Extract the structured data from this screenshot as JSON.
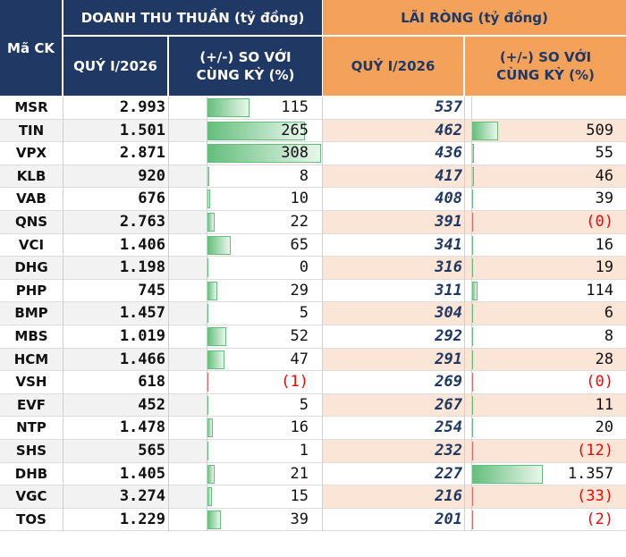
{
  "headers": {
    "ma_ck": "Mã CK",
    "doanh_thu": "DOANH THU THUẦN (tỷ đồng)",
    "lai_rong": "LÃI RÒNG (tỷ đồng)",
    "quy": "QUÝ I/2026",
    "so_voi": "(+/-) SO VỚI CÙNG KỲ (%)"
  },
  "colors": {
    "header_navy": "#1f3864",
    "header_orange": "#f4a15a",
    "row_band": "#fbe5d6",
    "bar_positive": "#63be7b",
    "bar_negative": "#f8696b",
    "negative_text": "#ff0000"
  },
  "chart_data": {
    "type": "table",
    "title": "DOANH THU THUẦN và LÃI RÒNG QUÝ I/2026",
    "columns": [
      "Mã CK",
      "Doanh thu thuần Quý I/2026 (tỷ đồng)",
      "Doanh thu (+/-) so với cùng kỳ (%)",
      "Lãi ròng Quý I/2026 (tỷ đồng)",
      "Lãi ròng (+/-) so với cùng kỳ (%)"
    ],
    "dt_bar_max": 308,
    "lr_bar_max": 1357,
    "rows": [
      {
        "ma": "MSR",
        "dt": "2.993",
        "dt_chg": 115,
        "dt_chg_label": "115",
        "lr": "537",
        "lr_chg": null,
        "lr_chg_label": ""
      },
      {
        "ma": "TIN",
        "dt": "1.501",
        "dt_chg": 265,
        "dt_chg_label": "265",
        "lr": "462",
        "lr_chg": 509,
        "lr_chg_label": "509"
      },
      {
        "ma": "VPX",
        "dt": "2.871",
        "dt_chg": 308,
        "dt_chg_label": "308",
        "lr": "436",
        "lr_chg": 55,
        "lr_chg_label": "55"
      },
      {
        "ma": "KLB",
        "dt": "920",
        "dt_chg": 8,
        "dt_chg_label": "8",
        "lr": "417",
        "lr_chg": 46,
        "lr_chg_label": "46"
      },
      {
        "ma": "VAB",
        "dt": "676",
        "dt_chg": 10,
        "dt_chg_label": "10",
        "lr": "408",
        "lr_chg": 39,
        "lr_chg_label": "39"
      },
      {
        "ma": "QNS",
        "dt": "2.763",
        "dt_chg": 22,
        "dt_chg_label": "22",
        "lr": "391",
        "lr_chg": -0.4,
        "lr_chg_label": "(0)"
      },
      {
        "ma": "VCI",
        "dt": "1.406",
        "dt_chg": 65,
        "dt_chg_label": "65",
        "lr": "341",
        "lr_chg": 16,
        "lr_chg_label": "16"
      },
      {
        "ma": "DHG",
        "dt": "1.198",
        "dt_chg": 0,
        "dt_chg_label": "0",
        "lr": "316",
        "lr_chg": 19,
        "lr_chg_label": "19"
      },
      {
        "ma": "PHP",
        "dt": "745",
        "dt_chg": 29,
        "dt_chg_label": "29",
        "lr": "311",
        "lr_chg": 114,
        "lr_chg_label": "114"
      },
      {
        "ma": "BMP",
        "dt": "1.457",
        "dt_chg": 5,
        "dt_chg_label": "5",
        "lr": "304",
        "lr_chg": 6,
        "lr_chg_label": "6"
      },
      {
        "ma": "MBS",
        "dt": "1.019",
        "dt_chg": 52,
        "dt_chg_label": "52",
        "lr": "292",
        "lr_chg": 8,
        "lr_chg_label": "8"
      },
      {
        "ma": "HCM",
        "dt": "1.466",
        "dt_chg": 47,
        "dt_chg_label": "47",
        "lr": "291",
        "lr_chg": 28,
        "lr_chg_label": "28"
      },
      {
        "ma": "VSH",
        "dt": "618",
        "dt_chg": -1,
        "dt_chg_label": "(1)",
        "lr": "269",
        "lr_chg": -0.4,
        "lr_chg_label": "(0)"
      },
      {
        "ma": "EVF",
        "dt": "452",
        "dt_chg": 5,
        "dt_chg_label": "5",
        "lr": "267",
        "lr_chg": 11,
        "lr_chg_label": "11"
      },
      {
        "ma": "NTP",
        "dt": "1.478",
        "dt_chg": 16,
        "dt_chg_label": "16",
        "lr": "254",
        "lr_chg": 20,
        "lr_chg_label": "20"
      },
      {
        "ma": "SHS",
        "dt": "565",
        "dt_chg": 1,
        "dt_chg_label": "1",
        "lr": "232",
        "lr_chg": -12,
        "lr_chg_label": "(12)"
      },
      {
        "ma": "DHB",
        "dt": "1.405",
        "dt_chg": 21,
        "dt_chg_label": "21",
        "lr": "227",
        "lr_chg": 1357,
        "lr_chg_label": "1.357"
      },
      {
        "ma": "VGC",
        "dt": "3.274",
        "dt_chg": 15,
        "dt_chg_label": "15",
        "lr": "216",
        "lr_chg": -33,
        "lr_chg_label": "(33)"
      },
      {
        "ma": "TOS",
        "dt": "1.229",
        "dt_chg": 39,
        "dt_chg_label": "39",
        "lr": "201",
        "lr_chg": -2,
        "lr_chg_label": "(2)"
      }
    ]
  }
}
